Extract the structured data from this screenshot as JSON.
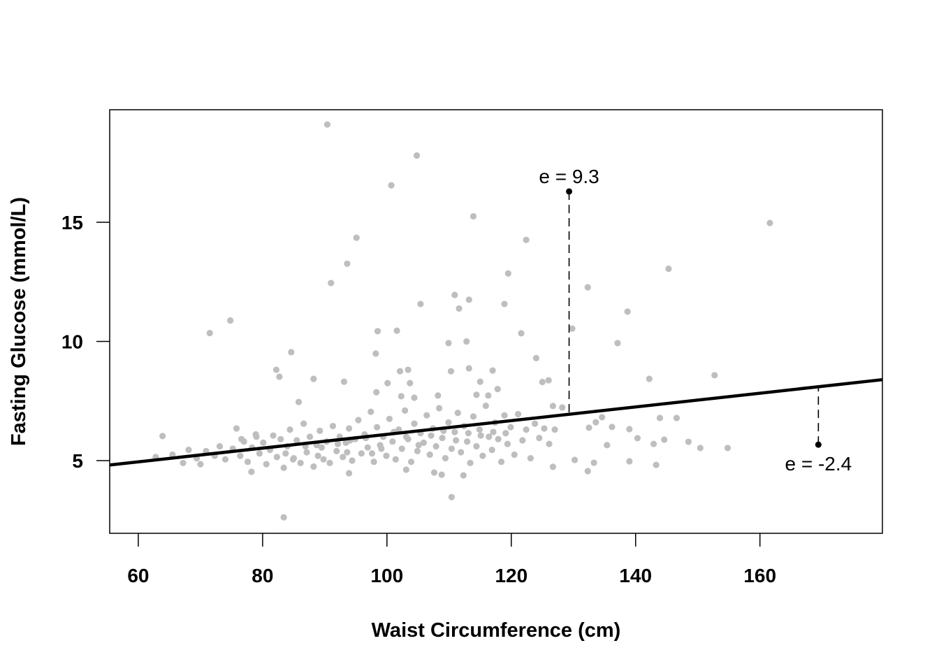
{
  "chart_data": {
    "type": "scatter",
    "title": "",
    "xlabel": "Waist Circumference (cm)",
    "ylabel": "Fasting Glucose (mmol/L)",
    "xlim": [
      55.4,
      179.7
    ],
    "ylim": [
      1.95,
      19.72
    ],
    "x_ticks": [
      60,
      80,
      100,
      120,
      140,
      160
    ],
    "y_ticks": [
      5,
      10,
      15
    ],
    "grid": false,
    "legend": "none",
    "point_color": "#BEBEBE",
    "line_color": "#000000",
    "regression_line": {
      "intercept": 3.22,
      "slope": 0.0288
    },
    "residual_annotations": [
      {
        "x": 129.3,
        "y": 16.29,
        "label": "e = 9.3",
        "label_position": "above"
      },
      {
        "x": 169.4,
        "y": 5.67,
        "label": "e = -2.4",
        "label_position": "below"
      }
    ],
    "points": [
      [
        90.4,
        19.1
      ],
      [
        104.8,
        17.8
      ],
      [
        100.7,
        16.55
      ],
      [
        113.9,
        15.25
      ],
      [
        161.6,
        14.97
      ],
      [
        95.1,
        14.35
      ],
      [
        122.4,
        14.26
      ],
      [
        93.6,
        13.26
      ],
      [
        145.3,
        13.05
      ],
      [
        119.5,
        12.85
      ],
      [
        91.0,
        12.45
      ],
      [
        132.3,
        12.27
      ],
      [
        110.9,
        11.95
      ],
      [
        105.4,
        11.57
      ],
      [
        118.9,
        11.57
      ],
      [
        113.2,
        11.75
      ],
      [
        111.6,
        11.38
      ],
      [
        138.7,
        11.25
      ],
      [
        74.8,
        10.88
      ],
      [
        71.5,
        10.35
      ],
      [
        98.5,
        10.43
      ],
      [
        101.6,
        10.45
      ],
      [
        129.8,
        10.54
      ],
      [
        121.6,
        10.34
      ],
      [
        112.8,
        10.0
      ],
      [
        137.1,
        9.93
      ],
      [
        109.9,
        9.93
      ],
      [
        84.6,
        9.55
      ],
      [
        98.2,
        9.49
      ],
      [
        124.0,
        9.3
      ],
      [
        82.2,
        8.81
      ],
      [
        82.7,
        8.52
      ],
      [
        88.2,
        8.43
      ],
      [
        93.1,
        8.31
      ],
      [
        102.1,
        8.75
      ],
      [
        103.4,
        8.81
      ],
      [
        113.2,
        8.87
      ],
      [
        117.0,
        8.78
      ],
      [
        110.3,
        8.75
      ],
      [
        142.2,
        8.43
      ],
      [
        152.7,
        8.58
      ],
      [
        100.1,
        8.25
      ],
      [
        103.7,
        8.25
      ],
      [
        115.0,
        8.31
      ],
      [
        125.0,
        8.3
      ],
      [
        126.0,
        8.37
      ],
      [
        117.8,
        8.0
      ],
      [
        85.8,
        7.46
      ],
      [
        98.3,
        7.87
      ],
      [
        104.4,
        7.64
      ],
      [
        108.2,
        7.73
      ],
      [
        114.4,
        7.76
      ],
      [
        116.3,
        7.73
      ],
      [
        102.3,
        7.7
      ],
      [
        126.7,
        7.29
      ],
      [
        128.2,
        7.23
      ],
      [
        63.9,
        6.03
      ],
      [
        143.9,
        6.79
      ],
      [
        146.6,
        6.79
      ],
      [
        140.3,
        5.94
      ],
      [
        142.9,
        5.7
      ],
      [
        144.6,
        5.88
      ],
      [
        148.5,
        5.79
      ],
      [
        150.4,
        5.53
      ],
      [
        154.8,
        5.53
      ],
      [
        139.0,
        6.32
      ],
      [
        136.2,
        6.41
      ],
      [
        134.6,
        6.82
      ],
      [
        133.6,
        6.61
      ],
      [
        132.5,
        6.38
      ],
      [
        135.4,
        5.65
      ],
      [
        139.0,
        4.97
      ],
      [
        143.3,
        4.82
      ],
      [
        133.3,
        4.91
      ],
      [
        130.2,
        5.03
      ],
      [
        132.3,
        4.56
      ],
      [
        126.7,
        4.74
      ],
      [
        110.4,
        3.47
      ],
      [
        83.4,
        2.62
      ],
      [
        112.3,
        4.38
      ],
      [
        108.8,
        4.41
      ],
      [
        107.6,
        4.5
      ],
      [
        103.1,
        4.62
      ],
      [
        93.9,
        4.47
      ],
      [
        78.2,
        4.53
      ],
      [
        62.8,
        5.15
      ],
      [
        65.5,
        5.25
      ],
      [
        67.2,
        4.9
      ],
      [
        68.1,
        5.45
      ],
      [
        69.4,
        5.1
      ],
      [
        70.0,
        4.85
      ],
      [
        70.9,
        5.4
      ],
      [
        72.3,
        5.2
      ],
      [
        73.1,
        5.6
      ],
      [
        74.0,
        5.05
      ],
      [
        75.2,
        5.5
      ],
      [
        75.8,
        6.35
      ],
      [
        76.4,
        5.2
      ],
      [
        77.0,
        5.8
      ],
      [
        77.6,
        4.95
      ],
      [
        78.3,
        5.55
      ],
      [
        78.9,
        6.1
      ],
      [
        79.5,
        5.3
      ],
      [
        80.1,
        5.75
      ],
      [
        80.6,
        4.85
      ],
      [
        81.2,
        5.45
      ],
      [
        81.7,
        6.05
      ],
      [
        82.3,
        5.15
      ],
      [
        82.9,
        5.9
      ],
      [
        83.4,
        4.7
      ],
      [
        84.0,
        5.6
      ],
      [
        84.4,
        6.3
      ],
      [
        85.0,
        5.1
      ],
      [
        85.5,
        5.85
      ],
      [
        86.1,
        4.9
      ],
      [
        86.6,
        6.55
      ],
      [
        87.1,
        5.35
      ],
      [
        87.6,
        6.0
      ],
      [
        88.2,
        4.75
      ],
      [
        88.7,
        5.65
      ],
      [
        89.2,
        6.25
      ],
      [
        89.8,
        5.05
      ],
      [
        90.3,
        5.8
      ],
      [
        90.8,
        4.9
      ],
      [
        91.3,
        6.45
      ],
      [
        91.9,
        5.4
      ],
      [
        92.4,
        6.0
      ],
      [
        92.9,
        5.15
      ],
      [
        93.4,
        5.75
      ],
      [
        93.9,
        6.35
      ],
      [
        94.4,
        5.0
      ],
      [
        94.9,
        5.9
      ],
      [
        95.4,
        6.7
      ],
      [
        95.9,
        5.3
      ],
      [
        96.4,
        6.1
      ],
      [
        96.9,
        5.55
      ],
      [
        97.4,
        7.05
      ],
      [
        97.9,
        4.95
      ],
      [
        98.4,
        6.4
      ],
      [
        98.9,
        5.65
      ],
      [
        99.4,
        6.0
      ],
      [
        99.9,
        5.2
      ],
      [
        100.4,
        6.75
      ],
      [
        100.9,
        5.8
      ],
      [
        101.4,
        5.05
      ],
      [
        101.9,
        6.3
      ],
      [
        102.4,
        5.5
      ],
      [
        102.9,
        7.1
      ],
      [
        103.4,
        5.9
      ],
      [
        103.9,
        4.95
      ],
      [
        104.4,
        6.55
      ],
      [
        104.9,
        5.4
      ],
      [
        105.4,
        6.15
      ],
      [
        105.9,
        5.75
      ],
      [
        106.4,
        6.9
      ],
      [
        106.9,
        5.25
      ],
      [
        107.4,
        6.35
      ],
      [
        107.9,
        5.6
      ],
      [
        108.4,
        7.2
      ],
      [
        108.9,
        5.95
      ],
      [
        109.4,
        5.1
      ],
      [
        109.9,
        6.6
      ],
      [
        110.4,
        5.5
      ],
      [
        110.9,
        6.2
      ],
      [
        111.4,
        7.0
      ],
      [
        111.9,
        5.35
      ],
      [
        112.4,
        6.45
      ],
      [
        112.9,
        5.8
      ],
      [
        113.4,
        4.9
      ],
      [
        113.9,
        6.85
      ],
      [
        114.4,
        5.6
      ],
      [
        114.9,
        6.3
      ],
      [
        115.4,
        5.2
      ],
      [
        115.9,
        7.3
      ],
      [
        116.4,
        6.0
      ],
      [
        116.9,
        5.45
      ],
      [
        117.4,
        6.6
      ],
      [
        117.9,
        5.9
      ],
      [
        118.4,
        4.95
      ],
      [
        118.9,
        6.9
      ],
      [
        119.4,
        5.7
      ],
      [
        119.9,
        6.4
      ],
      [
        120.5,
        5.25
      ],
      [
        121.1,
        6.95
      ],
      [
        121.8,
        5.85
      ],
      [
        122.4,
        6.3
      ],
      [
        123.1,
        5.1
      ],
      [
        123.8,
        6.55
      ],
      [
        124.5,
        5.95
      ],
      [
        125.3,
        6.35
      ],
      [
        126.1,
        5.7
      ],
      [
        127.0,
        6.3
      ],
      [
        76.6,
        5.9
      ],
      [
        79.0,
        6.0
      ],
      [
        83.7,
        5.3
      ],
      [
        86.9,
        5.6
      ],
      [
        89.5,
        5.55
      ],
      [
        92.1,
        5.7
      ],
      [
        94.1,
        5.85
      ],
      [
        96.6,
        5.95
      ],
      [
        99.1,
        5.5
      ],
      [
        101.1,
        6.2
      ],
      [
        103.1,
        6.0
      ],
      [
        105.1,
        5.65
      ],
      [
        107.1,
        6.05
      ],
      [
        109.1,
        6.25
      ],
      [
        111.1,
        5.85
      ],
      [
        113.1,
        6.15
      ],
      [
        115.1,
        6.05
      ],
      [
        117.1,
        6.2
      ],
      [
        119.1,
        6.15
      ],
      [
        84.9,
        5.05
      ],
      [
        88.9,
        5.2
      ],
      [
        93.6,
        5.35
      ],
      [
        97.6,
        5.3
      ]
    ]
  }
}
